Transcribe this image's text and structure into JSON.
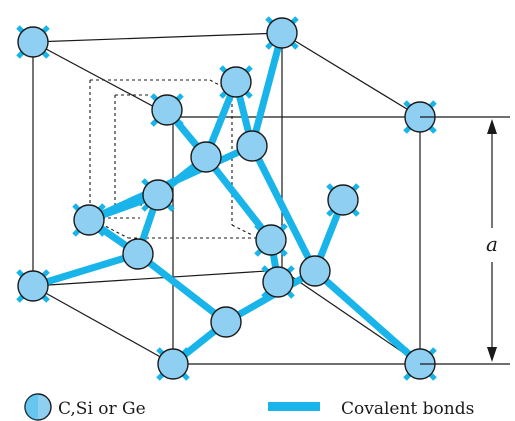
{
  "figure": {
    "dimension_label": "a",
    "legend": {
      "atom_label": "C,Si or Ge",
      "bond_label": "Covalent bonds"
    },
    "colors": {
      "bond": "#19b4ea",
      "atom_fill": "#8fd0f2",
      "line": "#1a1a1a"
    }
  }
}
